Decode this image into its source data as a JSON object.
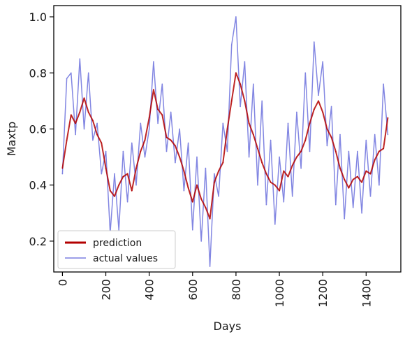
{
  "chart_data": {
    "type": "line",
    "xlabel": "Days",
    "ylabel": "Maxtp",
    "xlim": [
      -40,
      1560
    ],
    "ylim": [
      0.09,
      1.04
    ],
    "x_ticks": [
      0,
      200,
      400,
      600,
      800,
      1000,
      1200,
      1400
    ],
    "x_tick_labels": [
      "0",
      "200",
      "400",
      "600",
      "800",
      "1000",
      "1200",
      "1400"
    ],
    "y_ticks": [
      0.2,
      0.4,
      0.6,
      0.8,
      1.0
    ],
    "y_tick_labels": [
      "0.2",
      "0.4",
      "0.6",
      "0.8",
      "1.0"
    ],
    "grid": false,
    "legend_position": "lower-left",
    "series": [
      {
        "name": "prediction",
        "color": "#b30000",
        "x": [
          0,
          20,
          40,
          60,
          80,
          100,
          120,
          140,
          160,
          180,
          200,
          220,
          240,
          260,
          280,
          300,
          320,
          340,
          360,
          380,
          400,
          420,
          440,
          460,
          480,
          500,
          520,
          540,
          560,
          580,
          600,
          620,
          640,
          660,
          680,
          700,
          720,
          740,
          760,
          780,
          800,
          820,
          840,
          860,
          880,
          900,
          920,
          940,
          960,
          980,
          1000,
          1020,
          1040,
          1060,
          1080,
          1100,
          1120,
          1140,
          1160,
          1180,
          1200,
          1220,
          1240,
          1260,
          1280,
          1300,
          1320,
          1340,
          1360,
          1380,
          1400,
          1420,
          1440,
          1460,
          1480,
          1500
        ],
        "y": [
          0.46,
          0.56,
          0.65,
          0.62,
          0.66,
          0.71,
          0.66,
          0.63,
          0.58,
          0.55,
          0.46,
          0.38,
          0.36,
          0.4,
          0.43,
          0.44,
          0.38,
          0.46,
          0.52,
          0.56,
          0.64,
          0.74,
          0.67,
          0.65,
          0.57,
          0.56,
          0.54,
          0.5,
          0.45,
          0.39,
          0.34,
          0.4,
          0.35,
          0.32,
          0.28,
          0.41,
          0.45,
          0.48,
          0.6,
          0.7,
          0.8,
          0.76,
          0.7,
          0.62,
          0.58,
          0.53,
          0.48,
          0.44,
          0.41,
          0.4,
          0.38,
          0.45,
          0.43,
          0.47,
          0.5,
          0.52,
          0.56,
          0.62,
          0.67,
          0.7,
          0.66,
          0.6,
          0.57,
          0.52,
          0.46,
          0.42,
          0.39,
          0.42,
          0.43,
          0.41,
          0.45,
          0.44,
          0.49,
          0.52,
          0.53,
          0.64
        ]
      },
      {
        "name": "actual values",
        "color": "#7b7fe0",
        "x": [
          0,
          20,
          40,
          60,
          80,
          100,
          120,
          140,
          160,
          180,
          200,
          220,
          240,
          260,
          280,
          300,
          320,
          340,
          360,
          380,
          400,
          420,
          440,
          460,
          480,
          500,
          520,
          540,
          560,
          580,
          600,
          620,
          640,
          660,
          680,
          700,
          720,
          740,
          760,
          780,
          800,
          820,
          840,
          860,
          880,
          900,
          920,
          940,
          960,
          980,
          1000,
          1020,
          1040,
          1060,
          1080,
          1100,
          1120,
          1140,
          1160,
          1180,
          1200,
          1220,
          1240,
          1260,
          1280,
          1300,
          1320,
          1340,
          1360,
          1380,
          1400,
          1420,
          1440,
          1460,
          1480,
          1500
        ],
        "y": [
          0.44,
          0.78,
          0.8,
          0.58,
          0.85,
          0.6,
          0.8,
          0.56,
          0.62,
          0.44,
          0.52,
          0.23,
          0.44,
          0.24,
          0.52,
          0.34,
          0.55,
          0.4,
          0.62,
          0.5,
          0.6,
          0.84,
          0.62,
          0.76,
          0.52,
          0.66,
          0.48,
          0.6,
          0.38,
          0.55,
          0.24,
          0.5,
          0.2,
          0.46,
          0.11,
          0.44,
          0.36,
          0.62,
          0.52,
          0.9,
          1.0,
          0.68,
          0.84,
          0.5,
          0.76,
          0.4,
          0.7,
          0.33,
          0.56,
          0.26,
          0.5,
          0.34,
          0.62,
          0.36,
          0.66,
          0.46,
          0.8,
          0.52,
          0.91,
          0.72,
          0.84,
          0.54,
          0.68,
          0.33,
          0.58,
          0.28,
          0.52,
          0.32,
          0.52,
          0.3,
          0.56,
          0.36,
          0.58,
          0.4,
          0.76,
          0.58
        ]
      }
    ]
  }
}
